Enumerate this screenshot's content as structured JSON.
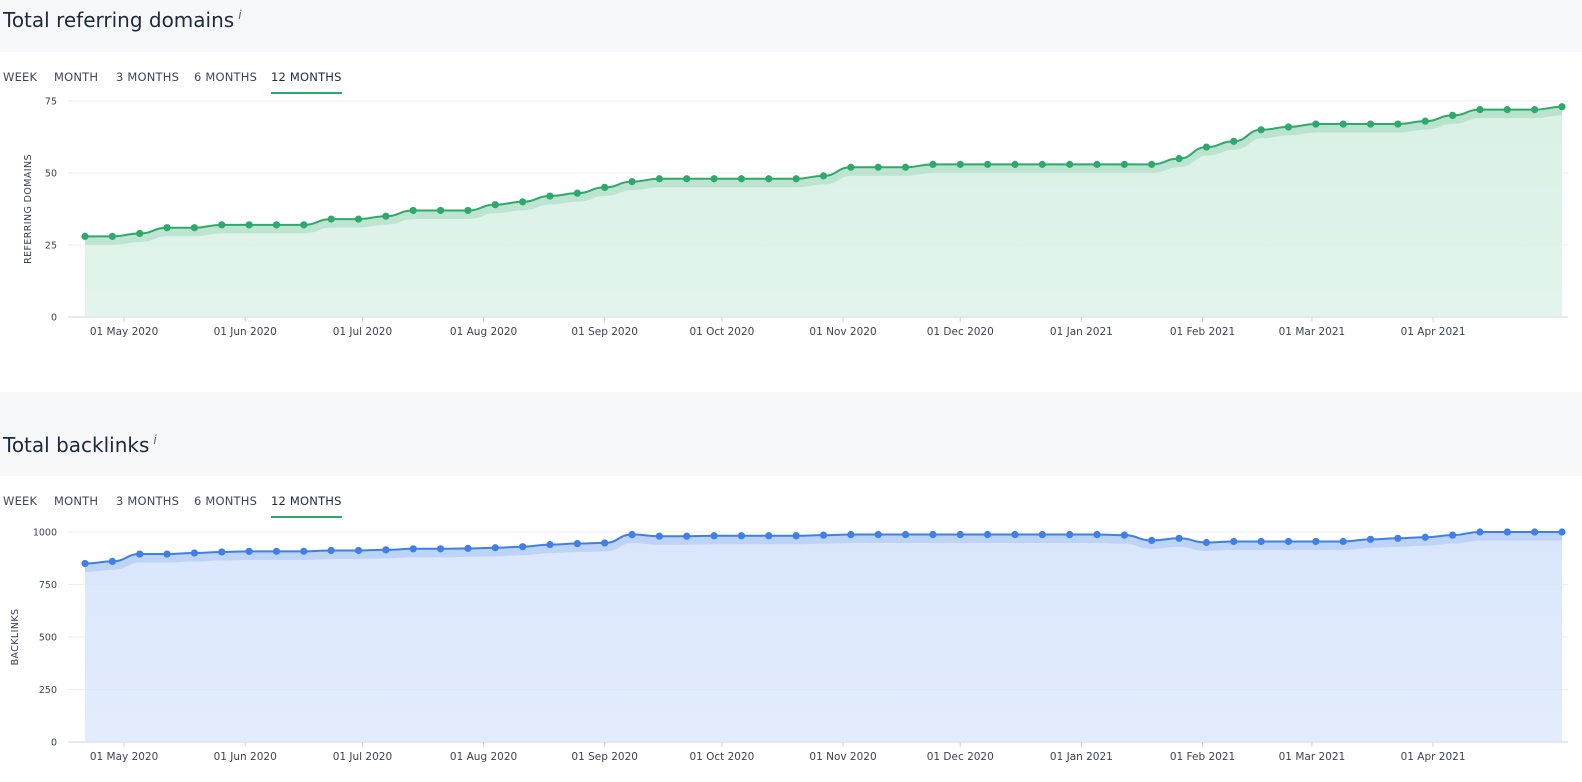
{
  "tabs": [
    "WEEK",
    "MONTH",
    "3 MONTHS",
    "6 MONTHS",
    "12 MONTHS"
  ],
  "active_tab": "12 MONTHS",
  "info_symbol": "i",
  "colors": {
    "green": "#2fa86b",
    "green_fill": "#d9f1e5",
    "blue": "#3f7fe6",
    "blue_fill": "#d9e6fc",
    "grid": "#eceef1"
  },
  "x_tick_labels": [
    "01 May 2020",
    "01 Jun 2020",
    "01 Jul 2020",
    "01 Aug 2020",
    "01 Sep 2020",
    "01 Oct 2020",
    "01 Nov 2020",
    "01 Dec 2020",
    "01 Jan 2021",
    "01 Feb 2021",
    "01 Mar 2021",
    "01 Apr 2021"
  ],
  "charts": [
    {
      "title": "Total referring domains",
      "ylabel": "REFERRING DOMAINS",
      "yticks": [
        "0",
        "25",
        "50",
        "75"
      ]
    },
    {
      "title": "Total backlinks",
      "ylabel": "BACKLINKS",
      "yticks": [
        "0",
        "250",
        "500",
        "750",
        "1000"
      ]
    }
  ],
  "chart_data": [
    {
      "type": "area",
      "title": "Total referring domains",
      "ylabel": "REFERRING DOMAINS",
      "ylim": [
        0,
        75
      ],
      "x_start": "2020-04-21",
      "x_step_days": 7,
      "values": [
        28,
        28,
        29,
        31,
        31,
        32,
        32,
        32,
        32,
        34,
        34,
        35,
        37,
        37,
        37,
        39,
        40,
        42,
        43,
        45,
        47,
        48,
        48,
        48,
        48,
        48,
        48,
        49,
        52,
        52,
        52,
        53,
        53,
        53,
        53,
        53,
        53,
        53,
        53,
        53,
        55,
        59,
        61,
        65,
        66,
        67,
        67,
        67,
        67,
        68,
        70,
        72,
        72,
        72,
        73
      ]
    },
    {
      "type": "area",
      "title": "Total backlinks",
      "ylabel": "BACKLINKS",
      "ylim": [
        0,
        1000
      ],
      "x_start": "2020-04-21",
      "x_step_days": 7,
      "values": [
        850,
        860,
        895,
        895,
        900,
        905,
        908,
        908,
        908,
        912,
        912,
        915,
        920,
        920,
        922,
        925,
        930,
        940,
        945,
        948,
        988,
        980,
        980,
        982,
        982,
        982,
        982,
        985,
        988,
        988,
        988,
        988,
        988,
        988,
        988,
        988,
        988,
        988,
        985,
        960,
        970,
        950,
        955,
        955,
        955,
        955,
        955,
        965,
        970,
        975,
        985,
        1000,
        1000,
        1000,
        1000
      ]
    }
  ]
}
